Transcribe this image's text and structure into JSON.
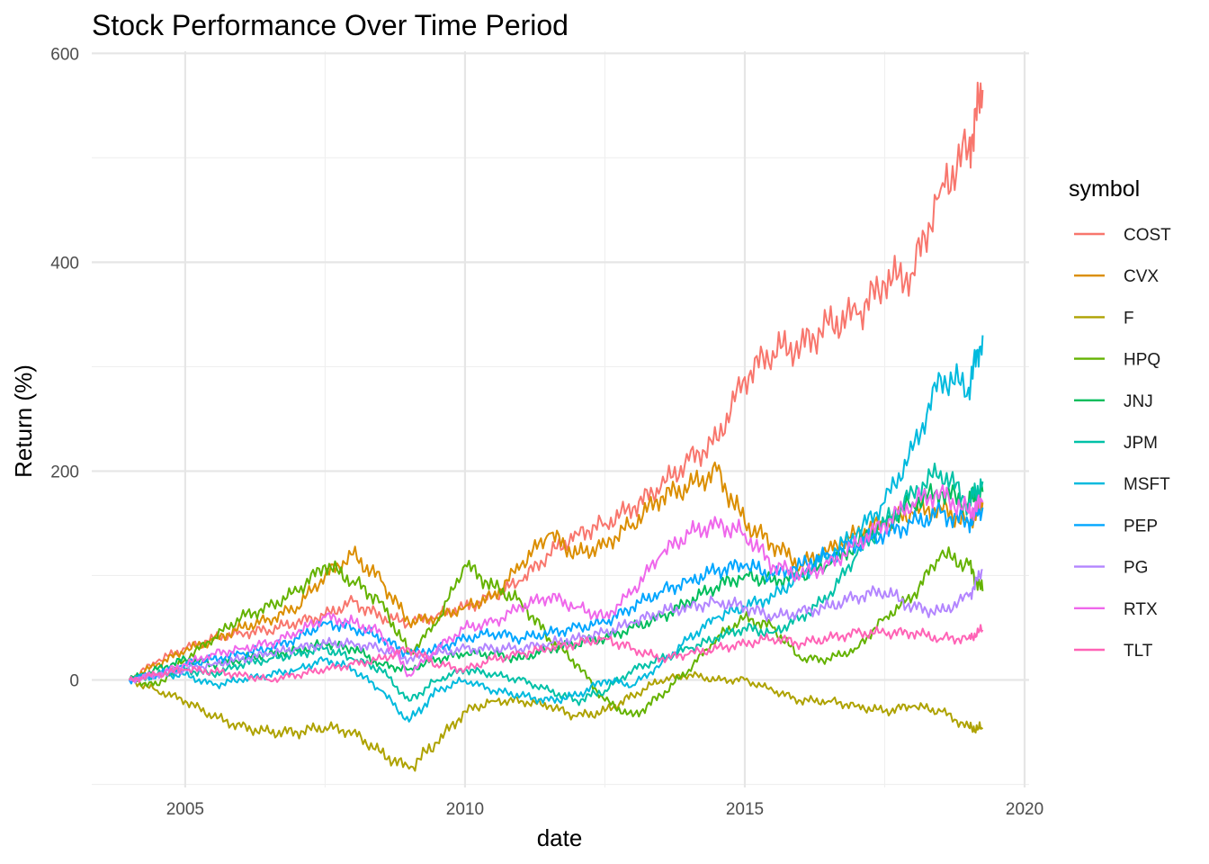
{
  "chart_data": {
    "type": "line",
    "title": "Stock Performance Over Time Period",
    "xlabel": "date",
    "ylabel": "Return (%)",
    "x_ticks": [
      "2005",
      "2010",
      "2015",
      "2020"
    ],
    "y_ticks": [
      "0",
      "200",
      "400",
      "600"
    ],
    "xlim": [
      2003.33,
      2020.08
    ],
    "ylim": [
      -103,
      602
    ],
    "grid": true,
    "legend": {
      "title": "symbol",
      "position": "right"
    },
    "x": [
      2004.0,
      2004.5,
      2005.0,
      2005.5,
      2006.0,
      2006.5,
      2007.0,
      2007.5,
      2008.0,
      2008.5,
      2009.0,
      2009.5,
      2010.0,
      2010.5,
      2011.0,
      2011.5,
      2012.0,
      2012.5,
      2013.0,
      2013.5,
      2014.0,
      2014.5,
      2015.0,
      2015.5,
      2016.0,
      2016.5,
      2017.0,
      2017.5,
      2018.0,
      2018.5,
      2019.0,
      2019.25
    ],
    "series": [
      {
        "name": "COST",
        "color": "#F8766D",
        "values": [
          0,
          18,
          30,
          40,
          45,
          48,
          55,
          62,
          75,
          60,
          55,
          62,
          70,
          80,
          95,
          120,
          140,
          150,
          165,
          185,
          210,
          230,
          290,
          315,
          320,
          340,
          350,
          380,
          390,
          470,
          510,
          565
        ]
      },
      {
        "name": "CVX",
        "color": "#DB8E00",
        "values": [
          0,
          15,
          28,
          38,
          50,
          58,
          70,
          100,
          120,
          95,
          55,
          60,
          70,
          80,
          110,
          140,
          120,
          130,
          150,
          175,
          185,
          200,
          150,
          130,
          110,
          125,
          140,
          150,
          160,
          165,
          150,
          170
        ]
      },
      {
        "name": "F",
        "color": "#AEA200",
        "values": [
          0,
          -10,
          -20,
          -35,
          -45,
          -50,
          -50,
          -45,
          -50,
          -70,
          -85,
          -60,
          -30,
          -20,
          -20,
          -25,
          -35,
          -30,
          -15,
          0,
          5,
          0,
          0,
          -10,
          -20,
          -20,
          -25,
          -30,
          -25,
          -30,
          -45,
          -47
        ]
      },
      {
        "name": "HPQ",
        "color": "#64B200",
        "values": [
          0,
          -5,
          20,
          40,
          60,
          70,
          85,
          110,
          95,
          75,
          25,
          55,
          110,
          90,
          75,
          40,
          15,
          -20,
          -35,
          -15,
          10,
          40,
          60,
          50,
          20,
          20,
          30,
          60,
          80,
          120,
          110,
          85
        ]
      },
      {
        "name": "JNJ",
        "color": "#00BD5C",
        "values": [
          0,
          10,
          20,
          15,
          20,
          25,
          28,
          35,
          30,
          15,
          10,
          20,
          25,
          25,
          20,
          30,
          35,
          40,
          50,
          60,
          75,
          90,
          100,
          95,
          100,
          110,
          130,
          150,
          170,
          180,
          170,
          180
        ]
      },
      {
        "name": "JPM",
        "color": "#00C1A7",
        "values": [
          0,
          5,
          10,
          5,
          15,
          20,
          25,
          30,
          20,
          10,
          -20,
          0,
          10,
          5,
          0,
          -10,
          -20,
          -10,
          10,
          20,
          30,
          40,
          50,
          45,
          60,
          80,
          120,
          150,
          180,
          200,
          170,
          190
        ]
      },
      {
        "name": "MSFT",
        "color": "#00BADE",
        "values": [
          0,
          5,
          5,
          -5,
          0,
          5,
          10,
          20,
          10,
          -10,
          -40,
          -10,
          0,
          -10,
          -15,
          -20,
          -15,
          0,
          -5,
          15,
          40,
          60,
          70,
          80,
          100,
          120,
          140,
          170,
          220,
          290,
          280,
          330
        ]
      },
      {
        "name": "PEP",
        "color": "#00A6FF",
        "values": [
          0,
          5,
          15,
          20,
          25,
          30,
          40,
          55,
          50,
          40,
          25,
          30,
          40,
          45,
          40,
          45,
          50,
          55,
          70,
          85,
          95,
          105,
          110,
          100,
          110,
          120,
          130,
          140,
          150,
          160,
          150,
          165
        ]
      },
      {
        "name": "PG",
        "color": "#B385FF",
        "values": [
          0,
          5,
          10,
          15,
          20,
          25,
          30,
          35,
          35,
          30,
          20,
          25,
          30,
          30,
          30,
          35,
          40,
          45,
          55,
          65,
          70,
          75,
          70,
          60,
          65,
          70,
          80,
          85,
          70,
          65,
          80,
          105
        ]
      },
      {
        "name": "RTX",
        "color": "#EF67EB",
        "values": [
          0,
          5,
          15,
          25,
          30,
          35,
          45,
          60,
          55,
          45,
          5,
          30,
          50,
          55,
          70,
          80,
          70,
          60,
          85,
          120,
          140,
          150,
          140,
          110,
          100,
          110,
          130,
          150,
          170,
          180,
          160,
          170
        ]
      },
      {
        "name": "TLT",
        "color": "#FF63B6",
        "values": [
          0,
          5,
          10,
          8,
          5,
          0,
          5,
          10,
          15,
          20,
          30,
          15,
          10,
          20,
          25,
          30,
          35,
          40,
          30,
          20,
          25,
          30,
          35,
          40,
          35,
          40,
          45,
          45,
          45,
          40,
          40,
          48
        ]
      }
    ]
  }
}
